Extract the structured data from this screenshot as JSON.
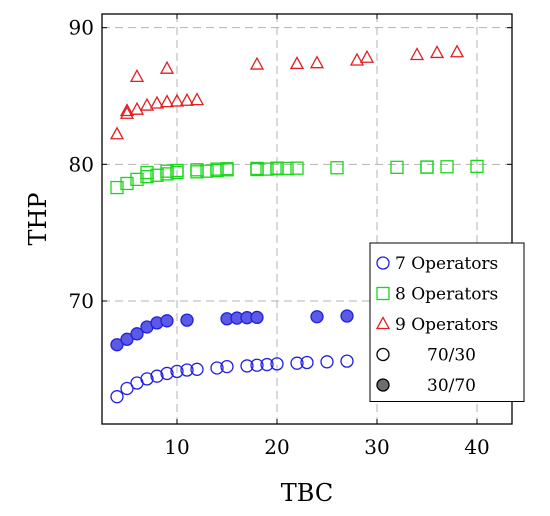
{
  "chart_data": {
    "type": "scatter",
    "xlabel": "TBC",
    "ylabel": "THP",
    "xlim": [
      2.5,
      43.5
    ],
    "ylim": [
      61,
      91
    ],
    "xticks": [
      10,
      20,
      30,
      40
    ],
    "yticks": [
      70,
      80,
      90
    ],
    "grid": true,
    "legend_position": "lower-right",
    "colors": {
      "7 Operators": "#1f1fe0",
      "8 Operators": "#17d817",
      "9 Operators": "#e01f1f",
      "neutral": "#000000",
      "filled_blue": "#5a5ae6"
    },
    "legend": [
      {
        "label": "7 Operators",
        "marker": "circle",
        "color": "#1f1fe0"
      },
      {
        "label": "8 Operators",
        "marker": "square",
        "color": "#17d817"
      },
      {
        "label": "9 Operators",
        "marker": "triangle",
        "color": "#e01f1f"
      },
      {
        "label": "70/30",
        "marker": "circle-open",
        "color": "#000000"
      },
      {
        "label": "30/70",
        "marker": "circle-filled",
        "color": "#000000"
      }
    ],
    "series": [
      {
        "operators": "7 Operators",
        "ratio": "70/30",
        "marker": "circle",
        "filled": false,
        "color": "#1f1fe0",
        "x": [
          4,
          5,
          6,
          7,
          8,
          9,
          10,
          11,
          12,
          14,
          15,
          17,
          18,
          19,
          20,
          22,
          23,
          25,
          27
        ],
        "y": [
          63.0,
          63.6,
          64.0,
          64.3,
          64.5,
          64.7,
          64.85,
          64.95,
          65.0,
          65.1,
          65.2,
          65.25,
          65.3,
          65.35,
          65.4,
          65.45,
          65.5,
          65.55,
          65.6
        ]
      },
      {
        "operators": "7 Operators",
        "ratio": "30/70",
        "marker": "circle",
        "filled": true,
        "color": "#1f1fe0",
        "x": [
          4,
          5,
          6,
          7,
          8,
          9,
          11,
          15,
          16,
          17,
          18,
          24,
          27
        ],
        "y": [
          66.8,
          67.2,
          67.6,
          68.1,
          68.4,
          68.55,
          68.6,
          68.7,
          68.75,
          68.78,
          68.8,
          68.85,
          68.9
        ]
      },
      {
        "operators": "8 Operators",
        "ratio": "70/30",
        "marker": "square",
        "filled": false,
        "color": "#17d817",
        "x": [
          4,
          5,
          6,
          7,
          8,
          9,
          10,
          12,
          13,
          14,
          15,
          18,
          19,
          20,
          21,
          22,
          26,
          32,
          35,
          37,
          40
        ],
        "y": [
          78.3,
          78.6,
          78.9,
          79.1,
          79.2,
          79.3,
          79.4,
          79.45,
          79.5,
          79.55,
          79.6,
          79.62,
          79.65,
          79.68,
          79.7,
          79.72,
          79.75,
          79.78,
          79.8,
          79.82,
          79.85
        ]
      },
      {
        "operators": "8 Operators",
        "ratio": "30/70",
        "marker": "square",
        "filled": false,
        "color": "#17d817",
        "x": [
          7,
          9,
          10,
          12,
          14,
          15,
          18,
          20,
          35
        ],
        "y": [
          79.4,
          79.5,
          79.55,
          79.6,
          79.65,
          79.68,
          79.7,
          79.72,
          79.8
        ]
      },
      {
        "operators": "9 Operators",
        "ratio": "70/30",
        "marker": "triangle",
        "filled": false,
        "color": "#e01f1f",
        "x": [
          4,
          5,
          6,
          7,
          8,
          9,
          10,
          11,
          12
        ],
        "y": [
          82.2,
          83.7,
          84.0,
          84.3,
          84.45,
          84.55,
          84.6,
          84.65,
          84.7
        ]
      },
      {
        "operators": "9 Operators",
        "ratio": "30/70",
        "marker": "triangle",
        "filled": false,
        "color": "#e01f1f",
        "x": [
          5,
          6,
          9,
          18,
          22,
          24,
          28,
          29,
          34,
          36,
          38
        ],
        "y": [
          83.9,
          86.4,
          87.0,
          87.3,
          87.35,
          87.4,
          87.6,
          87.8,
          88.0,
          88.15,
          88.2
        ]
      }
    ]
  }
}
